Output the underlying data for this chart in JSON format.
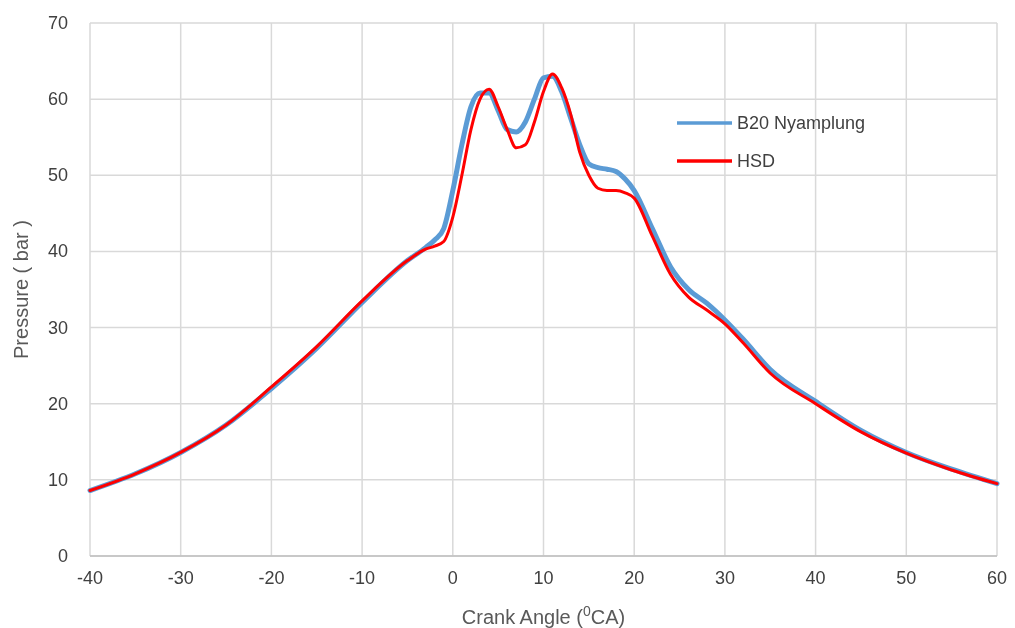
{
  "chart_data": {
    "type": "line",
    "xlabel": "Crank Angle ($^{0}$CA)",
    "ylabel": "Pressure ( bar )",
    "xlim": [
      -40,
      60
    ],
    "xticks": [
      -40,
      -30,
      -20,
      -10,
      0,
      10,
      20,
      30,
      40,
      50,
      60
    ],
    "ylim": [
      0,
      70
    ],
    "yticks": [
      0,
      10,
      20,
      30,
      40,
      50,
      60,
      70
    ],
    "grid": true,
    "legend": "top right",
    "marker": "none",
    "line_style": "solid",
    "series": [
      {
        "name": "B20 Nyamplung",
        "color": "#5b9bd5",
        "x": [
          -40,
          -35,
          -30,
          -25,
          -20,
          -15,
          -10,
          -5,
          -3,
          -2,
          -1,
          0,
          1,
          2,
          3,
          4,
          5,
          6,
          7,
          8,
          9,
          10,
          11,
          12,
          13,
          14,
          15,
          16,
          17,
          18,
          19,
          20,
          22,
          24,
          26,
          28,
          30,
          32,
          35,
          40,
          45,
          50,
          55,
          60
        ],
        "values": [
          8.6,
          10.8,
          13.6,
          17.2,
          22,
          27.3,
          33.3,
          38.8,
          40.5,
          41.5,
          43,
          48,
          54,
          59,
          60.8,
          60.8,
          58.5,
          56,
          55.7,
          57,
          60,
          62.8,
          63,
          61,
          57.5,
          54,
          51.5,
          51,
          50.8,
          50.5,
          49.5,
          48,
          43,
          38,
          35,
          33.2,
          31,
          28.5,
          24.5,
          20.3,
          16.5,
          13.6,
          11.4,
          9.5
        ]
      },
      {
        "name": "HSD",
        "color": "#ff0000",
        "x": [
          -40,
          -35,
          -30,
          -25,
          -20,
          -15,
          -10,
          -5,
          -3,
          -2,
          -1,
          0,
          1,
          2,
          3,
          4,
          5,
          6,
          7,
          8,
          9,
          10,
          11,
          12,
          13,
          14,
          15,
          16,
          17,
          18,
          19,
          20,
          22,
          24,
          26,
          28,
          30,
          32,
          35,
          40,
          45,
          50,
          55,
          60
        ],
        "values": [
          8.6,
          10.8,
          13.6,
          17.2,
          22.2,
          27.5,
          33.5,
          38.8,
          40.3,
          40.7,
          41.3,
          44.5,
          50,
          56,
          60,
          61.3,
          59,
          56,
          53.6,
          54,
          57,
          61,
          63.3,
          61.5,
          58,
          53,
          50,
          48.3,
          48,
          48,
          47.7,
          47,
          42,
          37,
          34,
          32.3,
          30.5,
          28,
          24,
          20,
          16.3,
          13.5,
          11.3,
          9.5
        ]
      }
    ]
  }
}
